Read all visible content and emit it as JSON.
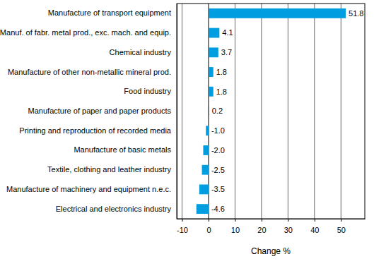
{
  "chart_data": {
    "type": "bar",
    "orientation": "horizontal",
    "categories": [
      "Manufacture of transport equipment",
      "Manuf. of fabr. metal prod., exc. mach. and equip.",
      "Chemical industry",
      "Manufacture of other non-metallic mineral prod.",
      "Food industry",
      "Manufacture of paper and paper products",
      "Printing and reproduction of recorded media",
      "Manufacture of basic metals",
      "Textile, clothing and leather industry",
      "Manufacture of machinery and equipment n.e.c.",
      "Electrical and electronics industry"
    ],
    "values": [
      51.8,
      4.1,
      3.7,
      1.8,
      1.8,
      0.2,
      -1.0,
      -2.0,
      -2.5,
      -3.5,
      -4.6
    ],
    "value_labels": [
      "51.8",
      "4.1",
      "3.7",
      "1.8",
      "1.8",
      "0.2",
      "-1.0",
      "-2.0",
      "-2.5",
      "-3.5",
      "-4.6"
    ],
    "color": "#009ee0",
    "x_label": "Change %",
    "xlim": [
      -12,
      59
    ],
    "xticks": [
      -10,
      0,
      10,
      20,
      30,
      40,
      50
    ],
    "grid": true,
    "data_labels": true
  }
}
